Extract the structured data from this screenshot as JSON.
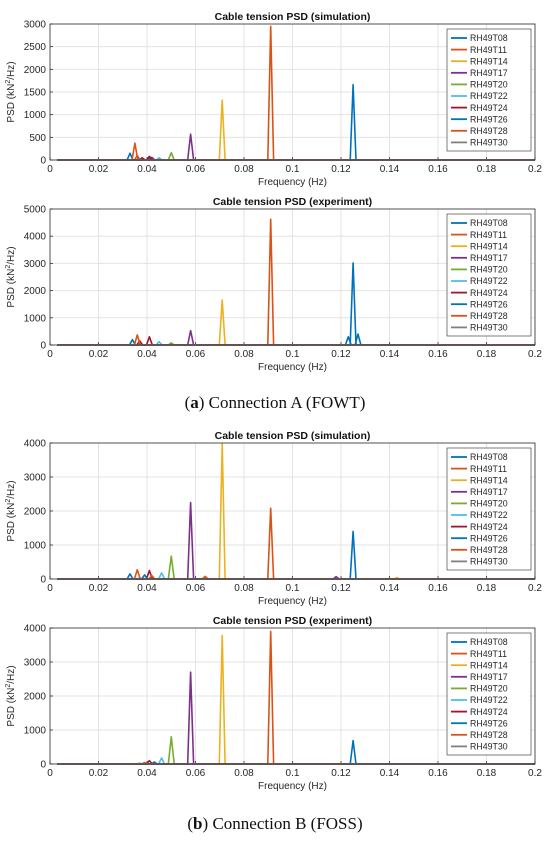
{
  "legend_entries": [
    "RH49T08",
    "RH49T11",
    "RH49T14",
    "RH49T17",
    "RH49T20",
    "RH49T22",
    "RH49T24",
    "RH49T26",
    "RH49T28",
    "RH49T30"
  ],
  "series_colors": [
    "#0072BD",
    "#D95319",
    "#EDB120",
    "#7E2F8E",
    "#77AC30",
    "#4DBEEE",
    "#A2142F",
    "#0072BD",
    "#D95319",
    "#808080"
  ],
  "axis": {
    "xlabel": "Frequency (Hz)",
    "ylabel_prefix": "PSD (kN",
    "ylabel_sup": "2",
    "ylabel_suffix": "/Hz)",
    "xlim": [
      0,
      0.2
    ],
    "xticks": [
      0,
      0.02,
      0.04,
      0.06,
      0.08,
      0.1,
      0.12,
      0.14,
      0.16,
      0.18,
      0.2
    ],
    "xtick_labels": [
      "0",
      "0.02",
      "0.04",
      "0.06",
      "0.08",
      "0.1",
      "0.12",
      "0.14",
      "0.16",
      "0.18",
      "0.2"
    ]
  },
  "captions": [
    {
      "letter": "a",
      "text": " Connection A (FOWT)"
    },
    {
      "letter": "b",
      "text": " Connection B (FOSS)"
    }
  ],
  "chart_data": [
    {
      "type": "line",
      "title": "Cable tension PSD (simulation)",
      "xlabel": "Frequency (Hz)",
      "ylabel": "PSD (kN2/Hz)",
      "ylim": [
        0,
        3000
      ],
      "yticks": [
        0,
        500,
        1000,
        1500,
        2000,
        2500,
        3000
      ],
      "grid": true,
      "legend_position": "right",
      "peaks": [
        {
          "series": "RH49T08",
          "color_index": 0,
          "peaks": [
            [
              0.125,
              1660
            ],
            [
              0.041,
              60
            ]
          ]
        },
        {
          "series": "RH49T11",
          "color_index": 1,
          "peaks": [
            [
              0.091,
              2950
            ],
            [
              0.036,
              100
            ]
          ]
        },
        {
          "series": "RH49T14",
          "color_index": 2,
          "peaks": [
            [
              0.071,
              1320
            ]
          ]
        },
        {
          "series": "RH49T17",
          "color_index": 3,
          "peaks": [
            [
              0.058,
              570
            ],
            [
              0.042,
              60
            ]
          ]
        },
        {
          "series": "RH49T20",
          "color_index": 4,
          "peaks": [
            [
              0.05,
              160
            ]
          ]
        },
        {
          "series": "RH49T22",
          "color_index": 5,
          "peaks": [
            [
              0.045,
              50
            ]
          ]
        },
        {
          "series": "RH49T24",
          "color_index": 6,
          "peaks": [
            [
              0.041,
              80
            ],
            [
              0.038,
              50
            ]
          ]
        },
        {
          "series": "RH49T26",
          "color_index": 7,
          "peaks": [
            [
              0.033,
              150
            ]
          ]
        },
        {
          "series": "RH49T28",
          "color_index": 8,
          "peaks": [
            [
              0.035,
              370
            ]
          ]
        },
        {
          "series": "RH49T30",
          "color_index": 9,
          "peaks": [
            [
              0.037,
              20
            ]
          ]
        }
      ]
    },
    {
      "type": "line",
      "title": "Cable tension PSD (experiment)",
      "xlabel": "Frequency (Hz)",
      "ylabel": "PSD (kN2/Hz)",
      "ylim": [
        0,
        5000
      ],
      "yticks": [
        0,
        1000,
        2000,
        3000,
        4000,
        5000
      ],
      "grid": true,
      "legend_position": "right",
      "peaks": [
        {
          "series": "RH49T08",
          "color_index": 0,
          "peaks": [
            [
              0.125,
              3020
            ],
            [
              0.123,
              300
            ],
            [
              0.127,
              400
            ]
          ]
        },
        {
          "series": "RH49T11",
          "color_index": 1,
          "peaks": [
            [
              0.091,
              4620
            ]
          ]
        },
        {
          "series": "RH49T14",
          "color_index": 2,
          "peaks": [
            [
              0.071,
              1650
            ]
          ]
        },
        {
          "series": "RH49T17",
          "color_index": 3,
          "peaks": [
            [
              0.058,
              530
            ]
          ]
        },
        {
          "series": "RH49T20",
          "color_index": 4,
          "peaks": [
            [
              0.05,
              80
            ]
          ]
        },
        {
          "series": "RH49T22",
          "color_index": 5,
          "peaks": [
            [
              0.045,
              120
            ]
          ]
        },
        {
          "series": "RH49T24",
          "color_index": 6,
          "peaks": [
            [
              0.041,
              300
            ],
            [
              0.037,
              150
            ]
          ]
        },
        {
          "series": "RH49T26",
          "color_index": 7,
          "peaks": [
            [
              0.034,
              200
            ]
          ]
        },
        {
          "series": "RH49T28",
          "color_index": 8,
          "peaks": [
            [
              0.036,
              370
            ]
          ]
        },
        {
          "series": "RH49T30",
          "color_index": 9,
          "peaks": [
            [
              0.035,
              20
            ]
          ]
        }
      ]
    },
    {
      "type": "line",
      "title": "Cable tension PSD (simulation)",
      "xlabel": "Frequency (Hz)",
      "ylabel": "PSD (kN2/Hz)",
      "ylim": [
        0,
        4000
      ],
      "yticks": [
        0,
        1000,
        2000,
        3000,
        4000
      ],
      "grid": true,
      "legend_position": "right",
      "peaks": [
        {
          "series": "RH49T08",
          "color_index": 0,
          "peaks": [
            [
              0.125,
              1400
            ]
          ]
        },
        {
          "series": "RH49T11",
          "color_index": 1,
          "peaks": [
            [
              0.091,
              2080
            ],
            [
              0.064,
              80
            ]
          ]
        },
        {
          "series": "RH49T14",
          "color_index": 2,
          "peaks": [
            [
              0.071,
              3980
            ],
            [
              0.143,
              40
            ]
          ]
        },
        {
          "series": "RH49T17",
          "color_index": 3,
          "peaks": [
            [
              0.058,
              2250
            ],
            [
              0.118,
              70
            ]
          ]
        },
        {
          "series": "RH49T20",
          "color_index": 4,
          "peaks": [
            [
              0.05,
              670
            ]
          ]
        },
        {
          "series": "RH49T22",
          "color_index": 5,
          "peaks": [
            [
              0.046,
              180
            ]
          ]
        },
        {
          "series": "RH49T24",
          "color_index": 6,
          "peaks": [
            [
              0.041,
              250
            ]
          ]
        },
        {
          "series": "RH49T26",
          "color_index": 7,
          "peaks": [
            [
              0.033,
              150
            ],
            [
              0.039,
              120
            ]
          ]
        },
        {
          "series": "RH49T28",
          "color_index": 8,
          "peaks": [
            [
              0.036,
              270
            ],
            [
              0.042,
              100
            ]
          ]
        },
        {
          "series": "RH49T30",
          "color_index": 9,
          "peaks": [
            [
              0.037,
              20
            ]
          ]
        }
      ]
    },
    {
      "type": "line",
      "title": "Cable tension PSD (experiment)",
      "xlabel": "Frequency (Hz)",
      "ylabel": "PSD (kN2/Hz)",
      "ylim": [
        0,
        4000
      ],
      "yticks": [
        0,
        1000,
        2000,
        3000,
        4000
      ],
      "grid": true,
      "legend_position": "right",
      "peaks": [
        {
          "series": "RH49T08",
          "color_index": 0,
          "peaks": [
            [
              0.125,
              690
            ]
          ]
        },
        {
          "series": "RH49T11",
          "color_index": 1,
          "peaks": [
            [
              0.091,
              3900
            ]
          ]
        },
        {
          "series": "RH49T14",
          "color_index": 2,
          "peaks": [
            [
              0.071,
              3780
            ]
          ]
        },
        {
          "series": "RH49T17",
          "color_index": 3,
          "peaks": [
            [
              0.058,
              2700
            ]
          ]
        },
        {
          "series": "RH49T20",
          "color_index": 4,
          "peaks": [
            [
              0.05,
              800
            ]
          ]
        },
        {
          "series": "RH49T22",
          "color_index": 5,
          "peaks": [
            [
              0.046,
              180
            ]
          ]
        },
        {
          "series": "RH49T24",
          "color_index": 6,
          "peaks": [
            [
              0.041,
              100
            ]
          ]
        },
        {
          "series": "RH49T26",
          "color_index": 7,
          "peaks": [
            [
              0.043,
              60
            ]
          ]
        },
        {
          "series": "RH49T28",
          "color_index": 8,
          "peaks": [
            [
              0.039,
              40
            ]
          ]
        },
        {
          "series": "RH49T30",
          "color_index": 9,
          "peaks": [
            [
              0.037,
              20
            ]
          ]
        }
      ]
    }
  ]
}
